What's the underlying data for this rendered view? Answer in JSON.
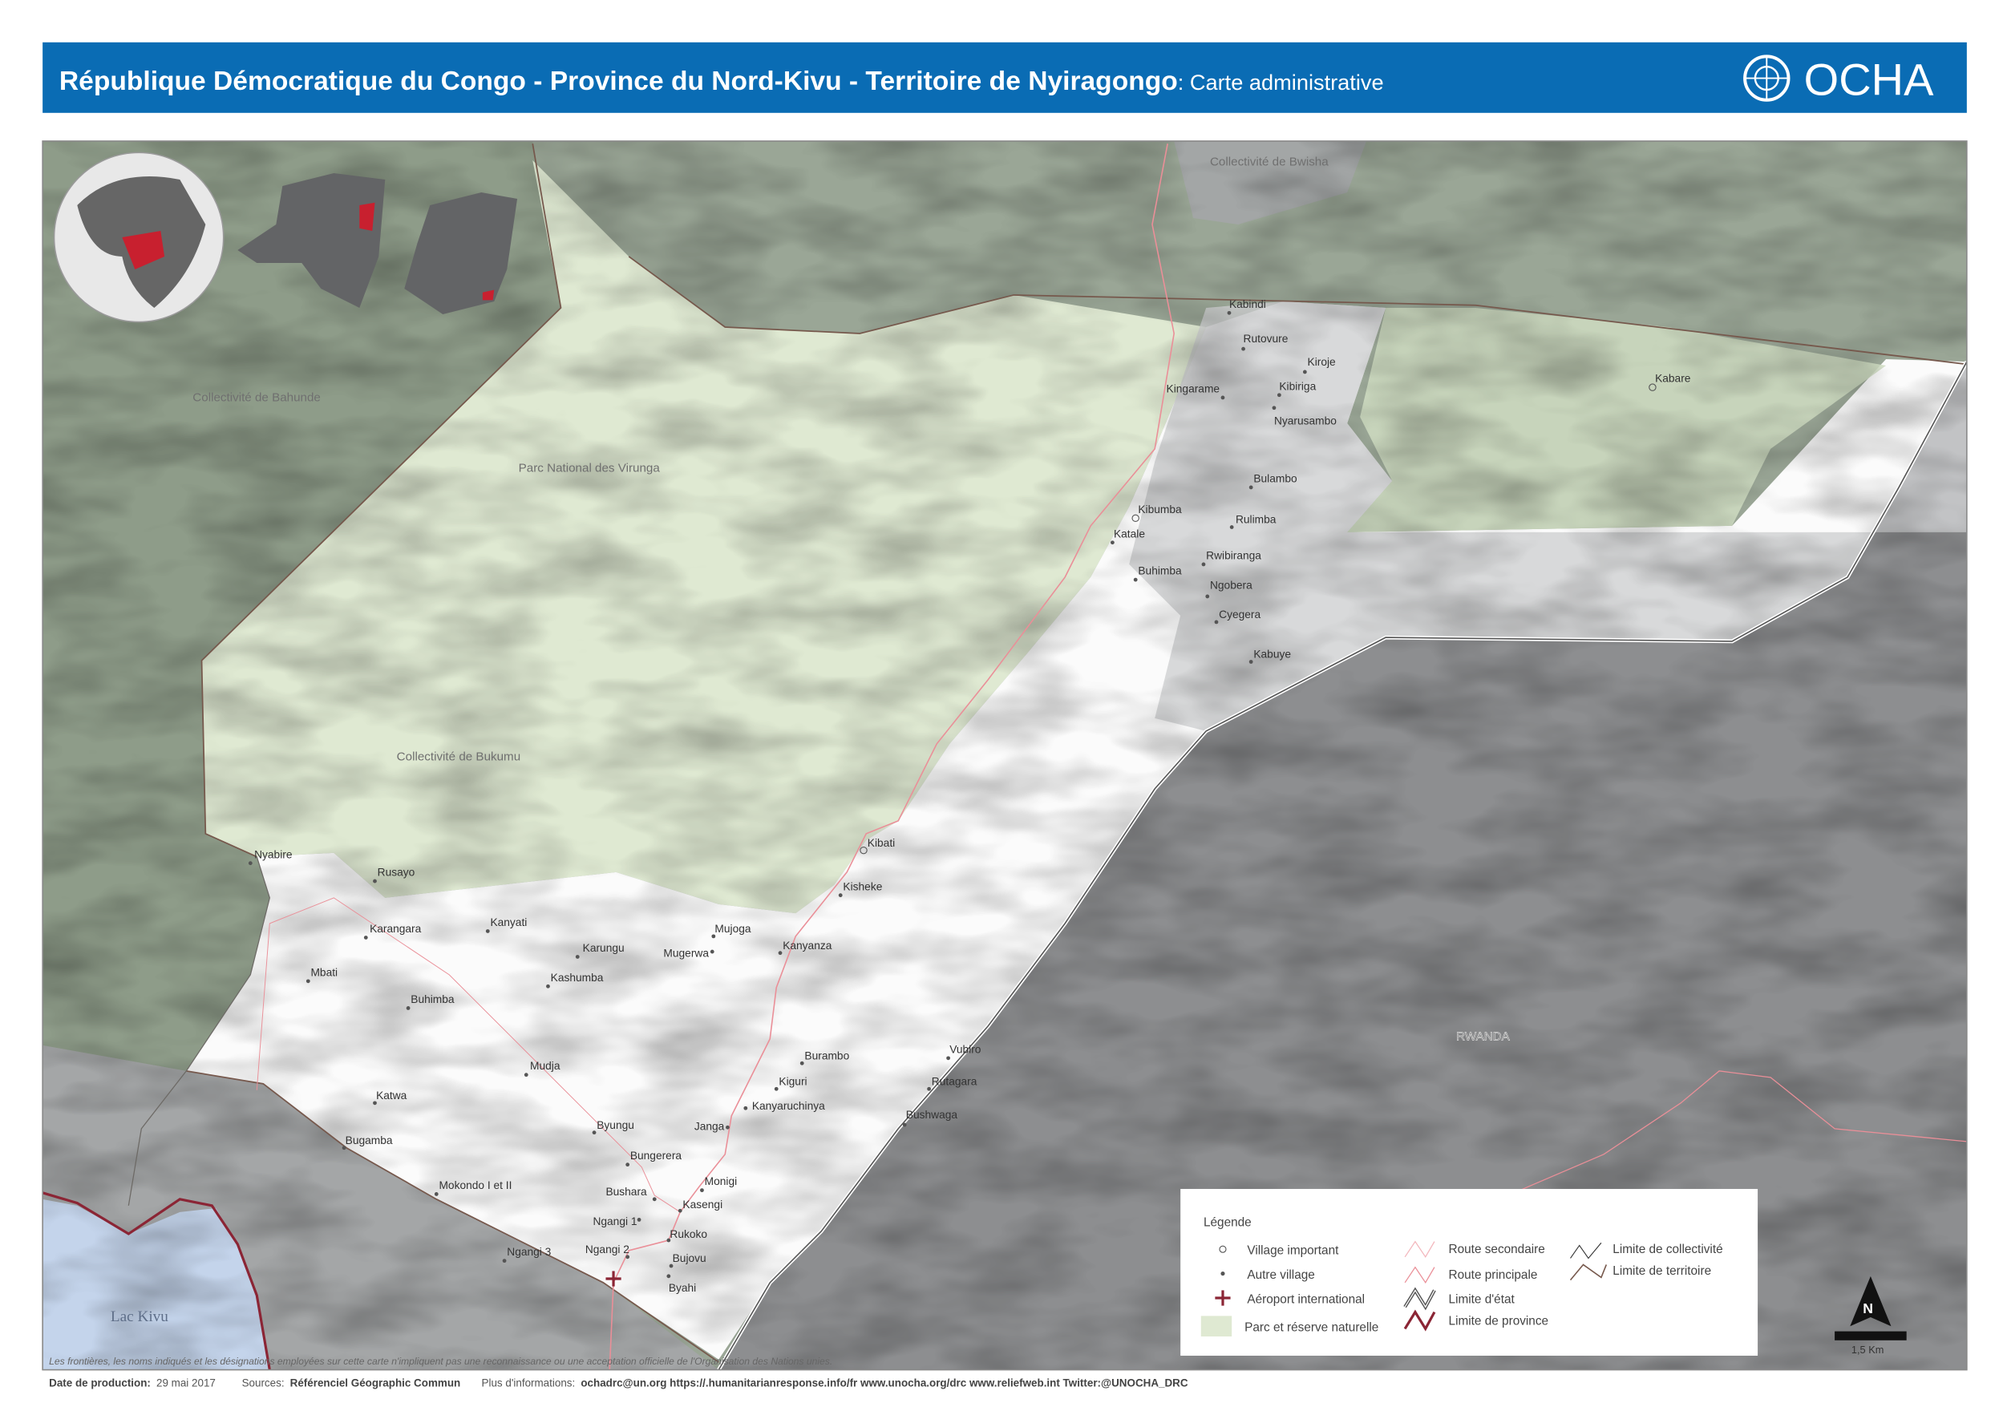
{
  "header": {
    "title_bold": "République Démocratique du Congo - Province du Nord-Kivu - Territoire de Nyiragongo",
    "title_rest": ": Carte administrative",
    "logo": "OCHA",
    "header_color": "#0a6cb4"
  },
  "areas": {
    "bwisha": "Collectivité de Bwisha",
    "bahunde": "Collectivité de Bahunde",
    "virunga": "Parc National des Virunga",
    "bukumu": "Collectivité de Bukumu",
    "rwanda": "RWANDA",
    "lac_kivu": "Lac Kivu"
  },
  "villages": [
    {
      "name": "Kabindi",
      "type": "autre"
    },
    {
      "name": "Rutovure",
      "type": "autre"
    },
    {
      "name": "Kiroje",
      "type": "autre"
    },
    {
      "name": "Kingarame",
      "type": "autre"
    },
    {
      "name": "Kibiriga",
      "type": "autre"
    },
    {
      "name": "Nyarusambo",
      "type": "autre"
    },
    {
      "name": "Bulambo",
      "type": "autre"
    },
    {
      "name": "Kibumba",
      "type": "important"
    },
    {
      "name": "Katale",
      "type": "autre"
    },
    {
      "name": "Rulimba",
      "type": "autre"
    },
    {
      "name": "Rwibiranga",
      "type": "autre"
    },
    {
      "name": "Buhimba",
      "type": "autre"
    },
    {
      "name": "Ngobera",
      "type": "autre"
    },
    {
      "name": "Cyegera",
      "type": "autre"
    },
    {
      "name": "Kabuye",
      "type": "autre"
    },
    {
      "name": "Kabare",
      "type": "important"
    },
    {
      "name": "Nyabire",
      "type": "autre"
    },
    {
      "name": "Rusayo",
      "type": "autre"
    },
    {
      "name": "Karangara",
      "type": "autre"
    },
    {
      "name": "Kanyati",
      "type": "autre"
    },
    {
      "name": "Mbati",
      "type": "autre"
    },
    {
      "name": "Karungu",
      "type": "autre"
    },
    {
      "name": "Mujoga",
      "type": "autre"
    },
    {
      "name": "Mugerwa",
      "type": "autre"
    },
    {
      "name": "Kanyanza",
      "type": "autre"
    },
    {
      "name": "Kashumba",
      "type": "autre"
    },
    {
      "name": "Buhimba",
      "type": "autre"
    },
    {
      "name": "Kibati",
      "type": "important"
    },
    {
      "name": "Kisheke",
      "type": "autre"
    },
    {
      "name": "Mudja",
      "type": "autre"
    },
    {
      "name": "Katwa",
      "type": "autre"
    },
    {
      "name": "Bugamba",
      "type": "autre"
    },
    {
      "name": "Burambo",
      "type": "autre"
    },
    {
      "name": "Vubiro",
      "type": "autre"
    },
    {
      "name": "Kiguri",
      "type": "autre"
    },
    {
      "name": "Rutagara",
      "type": "autre"
    },
    {
      "name": "Kanyaruchinya",
      "type": "autre"
    },
    {
      "name": "Janga",
      "type": "autre"
    },
    {
      "name": "Bushwaga",
      "type": "autre"
    },
    {
      "name": "Byungu",
      "type": "autre"
    },
    {
      "name": "Bungerera",
      "type": "autre"
    },
    {
      "name": "Mokondo I et II",
      "type": "autre"
    },
    {
      "name": "Monigi",
      "type": "autre"
    },
    {
      "name": "Bushara",
      "type": "autre"
    },
    {
      "name": "Kasengi",
      "type": "autre"
    },
    {
      "name": "Ngangi 1",
      "type": "autre"
    },
    {
      "name": "Rukoko",
      "type": "autre"
    },
    {
      "name": "Ngangi 2",
      "type": "autre"
    },
    {
      "name": "Ngangi 3",
      "type": "autre"
    },
    {
      "name": "Bujovu",
      "type": "autre"
    },
    {
      "name": "Byahi",
      "type": "autre"
    }
  ],
  "legend": {
    "title": "Légende",
    "village_important": "Village important",
    "autre_village": "Autre village",
    "aeroport": "Aéroport international",
    "parc": "Parc et réserve naturelle",
    "route_secondaire": "Route secondaire",
    "route_principale": "Route principale",
    "limite_etat": "Limite d'état",
    "limite_province": "Limite de province",
    "limite_collectivite": "Limite de collectivité",
    "limite_territoire": "Limite de territoire",
    "colors": {
      "park": "#dfe9d2",
      "road": "#ea8f98",
      "province": "#8b2535",
      "territory": "#76584c",
      "lake": "#c4d4eb"
    }
  },
  "scale": {
    "label": "1,5 Km",
    "north": "N"
  },
  "disclaimer": "Les frontières, les noms indiqués et les désignations employées sur cette carte n'impliquent pas une reconnaissance ou une acceptation officielle de l'Organisation des Nations unies.",
  "footer": {
    "date_label": "Date de production:",
    "date_value": "29 mai 2017",
    "sources_label": "Sources:",
    "sources_value": "Référenciel Géographic Commun",
    "info_label": "Plus d'informations:",
    "info_value": "ochadrc@un.org  https://.humanitarianresponse.info/fr www.unocha.org/drc www.reliefweb.int  Twitter:@UNOCHA_DRC"
  }
}
